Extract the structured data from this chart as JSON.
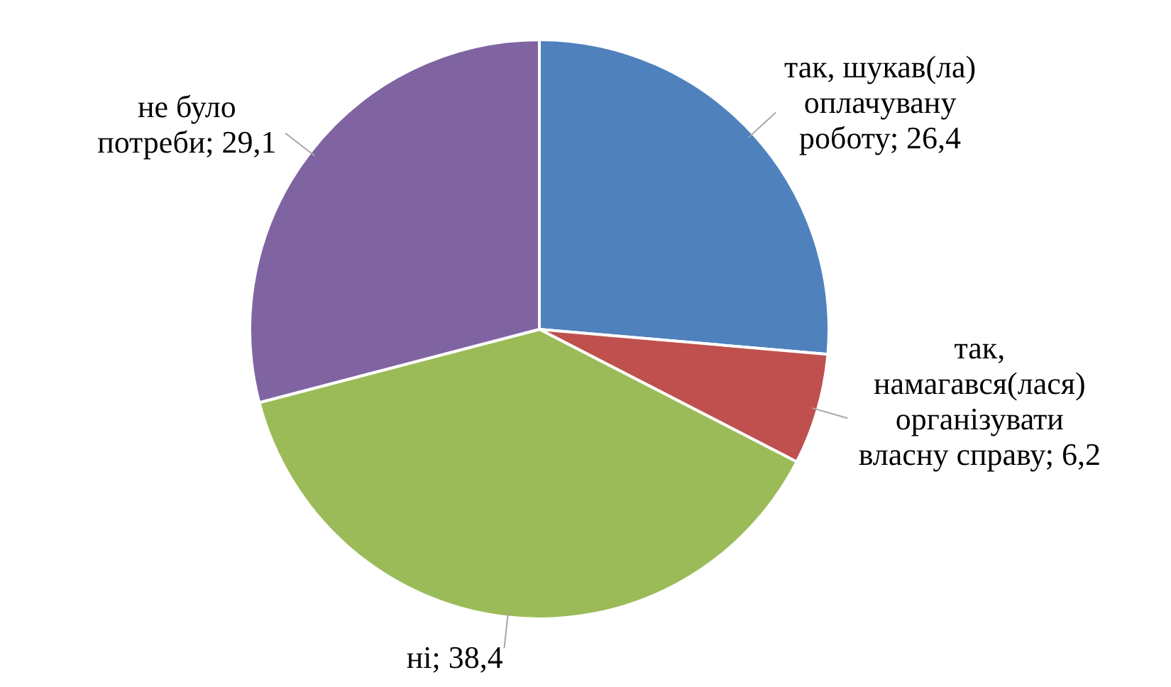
{
  "chart_data": {
    "type": "pie",
    "categories": [
      "так, шукав(ла) оплачувану роботу",
      "так, намагався(лася) організувати власну справу",
      "ні",
      "не було потреби"
    ],
    "values": [
      26.4,
      6.2,
      38.4,
      29.1
    ],
    "value_labels": [
      "26,4",
      "6,2",
      "38,4",
      "29,1"
    ],
    "colors": [
      "#4f81bd",
      "#c0504d",
      "#9bbb59",
      "#8064a2"
    ],
    "data_labels": true,
    "legend": false
  }
}
